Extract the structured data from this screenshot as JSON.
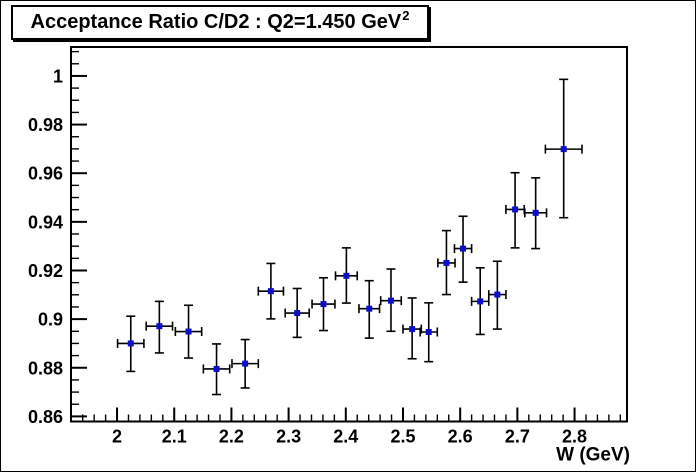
{
  "title": {
    "text": "Acceptance Ratio C/D2 : Q2=1.450 GeV",
    "superscript": "2"
  },
  "chart_data": {
    "type": "scatter",
    "title": "Acceptance Ratio C/D2 : Q2=1.450 GeV^2",
    "xlabel": "W (GeV)",
    "ylabel": "",
    "xlim": [
      1.9195,
      2.8917
    ],
    "ylim": [
      0.8579,
      1.0119
    ],
    "grid": false,
    "legend": "none",
    "marker": "filled-square",
    "marker_color": "#0d0dcc",
    "error_color": "#000000",
    "axis_color": "#000000",
    "x_major_ticks": [
      {
        "v": 2.0,
        "label": "2"
      },
      {
        "v": 2.1,
        "label": "2.1"
      },
      {
        "v": 2.2,
        "label": "2.2"
      },
      {
        "v": 2.3,
        "label": "2.3"
      },
      {
        "v": 2.4,
        "label": "2.4"
      },
      {
        "v": 2.5,
        "label": "2.5"
      },
      {
        "v": 2.6,
        "label": "2.6"
      },
      {
        "v": 2.7,
        "label": "2.7"
      },
      {
        "v": 2.8,
        "label": "2.8"
      }
    ],
    "x_minor_step": 0.02,
    "y_major_ticks": [
      {
        "v": 1.0,
        "label": "1"
      },
      {
        "v": 0.98,
        "label": "0.98"
      },
      {
        "v": 0.96,
        "label": "0.96"
      },
      {
        "v": 0.94,
        "label": "0.94"
      },
      {
        "v": 0.92,
        "label": "0.92"
      },
      {
        "v": 0.9,
        "label": "0.9"
      },
      {
        "v": 0.88,
        "label": "0.88"
      },
      {
        "v": 0.86,
        "label": "0.86"
      }
    ],
    "y_minor_step": 0.005,
    "points": [
      {
        "w": 2.024,
        "xerr": 0.023,
        "y": 0.89,
        "eyl": 0.0115,
        "eyh": 0.0112
      },
      {
        "w": 2.074,
        "xerr": 0.023,
        "y": 0.8971,
        "eyl": 0.011,
        "eyh": 0.0102
      },
      {
        "w": 2.125,
        "xerr": 0.023,
        "y": 0.8949,
        "eyl": 0.0109,
        "eyh": 0.0108
      },
      {
        "w": 2.174,
        "xerr": 0.023,
        "y": 0.8795,
        "eyl": 0.0105,
        "eyh": 0.0103
      },
      {
        "w": 2.224,
        "xerr": 0.023,
        "y": 0.8817,
        "eyl": 0.01,
        "eyh": 0.0099
      },
      {
        "w": 2.269,
        "xerr": 0.022,
        "y": 0.9115,
        "eyl": 0.0114,
        "eyh": 0.0114
      },
      {
        "w": 2.315,
        "xerr": 0.021,
        "y": 0.9025,
        "eyl": 0.01,
        "eyh": 0.0101
      },
      {
        "w": 2.361,
        "xerr": 0.02,
        "y": 0.9062,
        "eyl": 0.0109,
        "eyh": 0.0108
      },
      {
        "w": 2.401,
        "xerr": 0.019,
        "y": 0.9178,
        "eyl": 0.0112,
        "eyh": 0.0115
      },
      {
        "w": 2.441,
        "xerr": 0.018,
        "y": 0.9043,
        "eyl": 0.0121,
        "eyh": 0.0115
      },
      {
        "w": 2.479,
        "xerr": 0.018,
        "y": 0.9076,
        "eyl": 0.0126,
        "eyh": 0.013
      },
      {
        "w": 2.516,
        "xerr": 0.016,
        "y": 0.8959,
        "eyl": 0.0122,
        "eyh": 0.0128
      },
      {
        "w": 2.545,
        "xerr": 0.015,
        "y": 0.8947,
        "eyl": 0.0122,
        "eyh": 0.012
      },
      {
        "w": 2.576,
        "xerr": 0.015,
        "y": 0.9231,
        "eyl": 0.013,
        "eyh": 0.0133
      },
      {
        "w": 2.605,
        "xerr": 0.015,
        "y": 0.929,
        "eyl": 0.0138,
        "eyh": 0.0133
      },
      {
        "w": 2.635,
        "xerr": 0.015,
        "y": 0.9073,
        "eyl": 0.0136,
        "eyh": 0.0138
      },
      {
        "w": 2.665,
        "xerr": 0.015,
        "y": 0.9101,
        "eyl": 0.0142,
        "eyh": 0.0137
      },
      {
        "w": 2.696,
        "xerr": 0.016,
        "y": 0.9451,
        "eyl": 0.0158,
        "eyh": 0.0151
      },
      {
        "w": 2.732,
        "xerr": 0.019,
        "y": 0.9437,
        "eyl": 0.0147,
        "eyh": 0.0144
      },
      {
        "w": 2.781,
        "xerr": 0.032,
        "y": 0.9699,
        "eyl": 0.0282,
        "eyh": 0.0287
      }
    ]
  }
}
